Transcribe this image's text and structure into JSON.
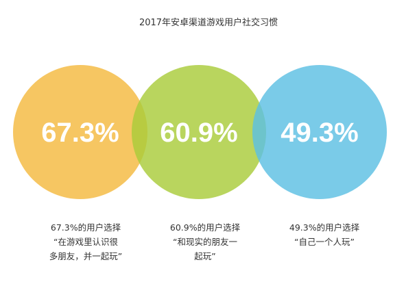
{
  "chart_data": {
    "type": "venn",
    "title": "2017年安卓渠道游戏用户社交习惯",
    "sets": [
      {
        "value": 67.3,
        "value_label": "67.3%",
        "caption_lines": [
          "67.3%的用户选择",
          "“在游戏里认识很",
          "多朋友，并一起玩”"
        ],
        "color": "#F4B93F"
      },
      {
        "value": 60.9,
        "value_label": "60.9%",
        "caption_lines": [
          "60.9%的用户选择",
          "“和现实的朋友一",
          "起玩”"
        ],
        "color": "#A9CC3B"
      },
      {
        "value": 49.3,
        "value_label": "49.3%",
        "caption_lines": [
          "49.3%的用户选择",
          "“自己一个人玩”"
        ],
        "color": "#5DBFE3"
      }
    ]
  }
}
